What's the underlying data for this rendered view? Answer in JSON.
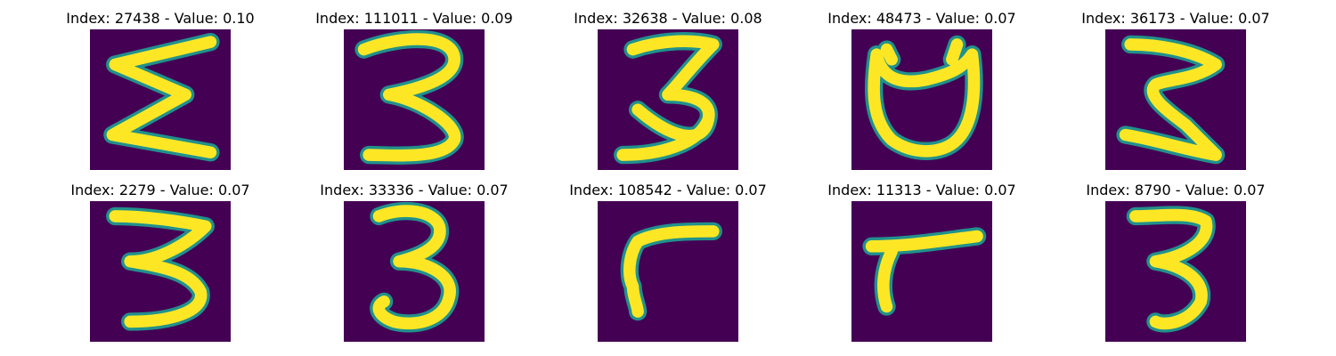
{
  "colors": {
    "background": "#440154",
    "stroke": "#fde725",
    "edge": "#21918c"
  },
  "panels": [
    {
      "title": "Index: 27438 - Value: 0.10"
    },
    {
      "title": "Index: 111011 - Value: 0.09"
    },
    {
      "title": "Index: 32638 - Value: 0.08"
    },
    {
      "title": "Index: 48473 - Value: 0.07"
    },
    {
      "title": "Index: 36173 - Value: 0.07"
    },
    {
      "title": "Index: 2279 - Value: 0.07"
    },
    {
      "title": "Index: 33336 - Value: 0.07"
    },
    {
      "title": "Index: 108542 - Value: 0.07"
    },
    {
      "title": "Index: 11313 - Value: 0.07"
    },
    {
      "title": "Index: 8790 - Value: 0.07"
    }
  ]
}
